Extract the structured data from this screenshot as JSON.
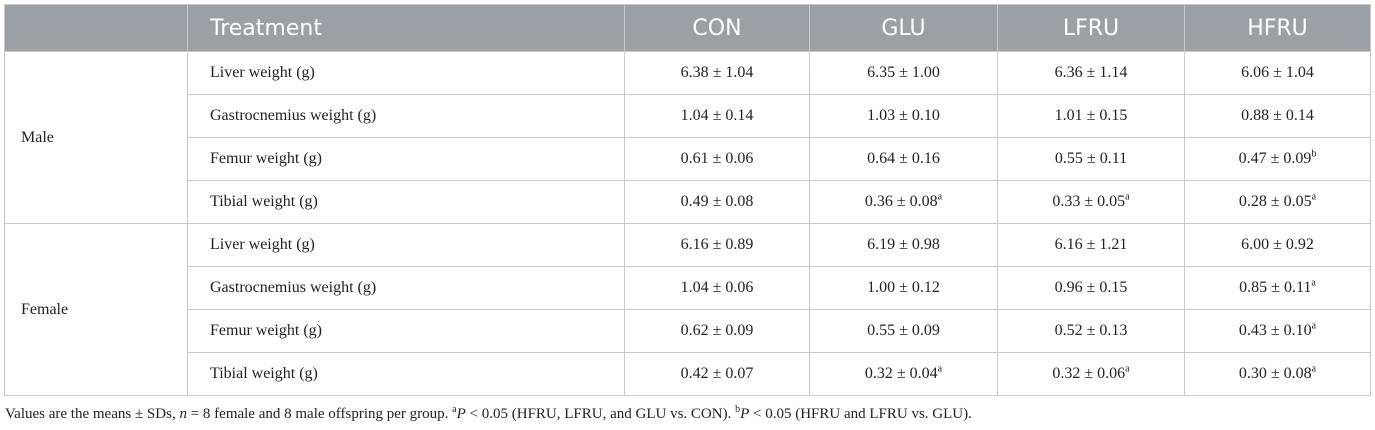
{
  "table": {
    "headers": {
      "sex": "",
      "treatment": "Treatment",
      "groups": [
        "CON",
        "GLU",
        "LFRU",
        "HFRU"
      ]
    },
    "groups": [
      {
        "sex": "Male",
        "rows": [
          {
            "measure": "Liver weight (g)",
            "cells": [
              {
                "v": "6.38 ± 1.04",
                "s": ""
              },
              {
                "v": "6.35 ± 1.00",
                "s": ""
              },
              {
                "v": "6.36 ± 1.14",
                "s": ""
              },
              {
                "v": "6.06 ± 1.04",
                "s": ""
              }
            ]
          },
          {
            "measure": "Gastrocnemius weight (g)",
            "cells": [
              {
                "v": "1.04 ± 0.14",
                "s": ""
              },
              {
                "v": "1.03 ± 0.10",
                "s": ""
              },
              {
                "v": "1.01 ± 0.15",
                "s": ""
              },
              {
                "v": "0.88 ± 0.14",
                "s": ""
              }
            ]
          },
          {
            "measure": "Femur weight (g)",
            "cells": [
              {
                "v": "0.61 ± 0.06",
                "s": ""
              },
              {
                "v": "0.64 ± 0.16",
                "s": ""
              },
              {
                "v": "0.55 ± 0.11",
                "s": ""
              },
              {
                "v": "0.47 ± 0.09",
                "s": "b"
              }
            ]
          },
          {
            "measure": "Tibial weight (g)",
            "cells": [
              {
                "v": "0.49 ± 0.08",
                "s": ""
              },
              {
                "v": "0.36 ± 0.08",
                "s": "a"
              },
              {
                "v": "0.33 ± 0.05",
                "s": "a"
              },
              {
                "v": "0.28 ± 0.05",
                "s": "a"
              }
            ]
          }
        ]
      },
      {
        "sex": "Female",
        "rows": [
          {
            "measure": "Liver weight (g)",
            "cells": [
              {
                "v": "6.16 ± 0.89",
                "s": ""
              },
              {
                "v": "6.19 ± 0.98",
                "s": ""
              },
              {
                "v": "6.16 ± 1.21",
                "s": ""
              },
              {
                "v": "6.00 ± 0.92",
                "s": ""
              }
            ]
          },
          {
            "measure": "Gastrocnemius weight (g)",
            "cells": [
              {
                "v": "1.04 ± 0.06",
                "s": ""
              },
              {
                "v": "1.00 ± 0.12",
                "s": ""
              },
              {
                "v": "0.96 ± 0.15",
                "s": ""
              },
              {
                "v": "0.85 ± 0.11",
                "s": "a"
              }
            ]
          },
          {
            "measure": "Femur weight (g)",
            "cells": [
              {
                "v": "0.62 ± 0.09",
                "s": ""
              },
              {
                "v": "0.55 ± 0.09",
                "s": ""
              },
              {
                "v": "0.52 ± 0.13",
                "s": ""
              },
              {
                "v": "0.43 ± 0.10",
                "s": "a"
              }
            ]
          },
          {
            "measure": "Tibial weight (g)",
            "cells": [
              {
                "v": "0.42 ± 0.07",
                "s": ""
              },
              {
                "v": "0.32 ± 0.04",
                "s": "a"
              },
              {
                "v": "0.32 ± 0.06",
                "s": "a"
              },
              {
                "v": "0.30 ± 0.08",
                "s": "a"
              }
            ]
          }
        ]
      }
    ]
  },
  "footnote": {
    "p1": "Values are the means ± SDs, ",
    "n": "n",
    "p2": " = 8 female and 8 male offspring per group. ",
    "sa": "a",
    "P1": "P",
    "p3": " < 0.05 (HFRU, LFRU, and GLU vs. CON). ",
    "sb": "b",
    "P2": "P",
    "p4": " < 0.05 (HFRU and LFRU vs. GLU)."
  }
}
